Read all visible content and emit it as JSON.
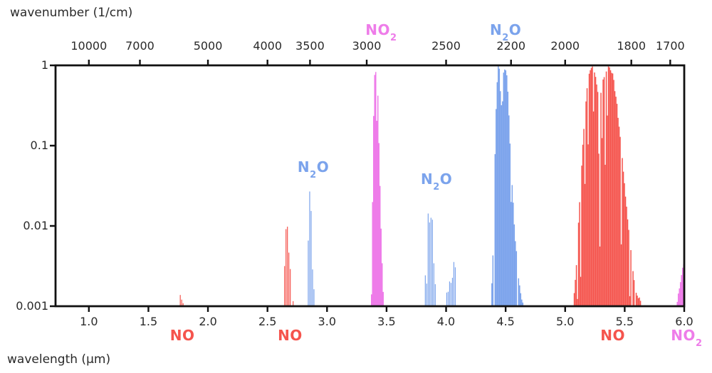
{
  "chart_data": {
    "type": "area",
    "title": "",
    "description": "Infrared absorption band spectrum of nitrogen oxides (NO, N2O, NO2) on a log intensity scale versus wavelength, with corresponding wavenumber axis on top",
    "top_axis": {
      "title": "wavenumber (1/cm)",
      "unit": "1/cm",
      "ticks": [
        "10000",
        "7000",
        "5000",
        "4000",
        "3500",
        "3000",
        "2500",
        "2200",
        "2000",
        "1800",
        "1700"
      ],
      "tick_values": [
        10000,
        7000,
        5000,
        4000,
        3500,
        3000,
        2500,
        2200,
        2000,
        1800,
        1700
      ],
      "relation": "wavenumber = 10000 / wavelength_um"
    },
    "bottom_axis": {
      "title": "wavelength (μm)",
      "unit": "μm",
      "ticks": [
        "1.0",
        "1.5",
        "2.0",
        "2.5",
        "3.0",
        "3.5",
        "4.0",
        "4.5",
        "5.0",
        "5.5",
        "6.0"
      ],
      "tick_values": [
        1.0,
        1.5,
        2.0,
        2.5,
        3.0,
        3.5,
        4.0,
        4.5,
        5.0,
        5.5,
        6.0
      ],
      "range_um": [
        0.72,
        6.0
      ]
    },
    "y_axis": {
      "title": "",
      "scale": "log",
      "range": [
        0.001,
        1
      ],
      "ticks": [
        "1",
        "0.1",
        "0.01",
        "0.001"
      ],
      "tick_values": [
        1,
        0.1,
        0.01,
        0.001
      ],
      "grid": false
    },
    "colors": {
      "NO": "#f5544d",
      "N2O": "#7ba3ec",
      "NO2": "#ee7ce9",
      "axis": "#111111",
      "text": "#2a2a2a"
    },
    "bands": [
      {
        "molecule": "NO",
        "color": "NO",
        "style": "spiky",
        "seed": 11,
        "jitter": 0.28,
        "gap_prob": 0.15,
        "gap_min": 0.2,
        "gap_var": 0.4,
        "envelope_um_value": [
          [
            1.752,
            0.001
          ],
          [
            1.76,
            0.0013
          ],
          [
            1.765,
            0.0023
          ],
          [
            1.771,
            0.0016
          ],
          [
            1.776,
            0.0021
          ],
          [
            1.782,
            0.0013
          ],
          [
            1.79,
            0.0011
          ],
          [
            1.806,
            0.001
          ]
        ]
      },
      {
        "molecule": "N2O",
        "color": "N2O",
        "style": "spiky",
        "seed": 22,
        "jitter": 0.3,
        "gap_prob": 0.1,
        "gap_min": 0.3,
        "gap_var": 0.3,
        "envelope_um_value": [
          [
            2.216,
            0.001
          ],
          [
            2.226,
            0.0012
          ],
          [
            2.236,
            0.0011
          ],
          [
            2.248,
            0.001
          ]
        ]
      },
      {
        "molecule": "N2O",
        "color": "N2O",
        "style": "spiky",
        "seed": 33,
        "jitter": 0.3,
        "gap_prob": 0.15,
        "gap_min": 0.3,
        "gap_var": 0.3,
        "envelope_um_value": [
          [
            2.543,
            0.001
          ],
          [
            2.552,
            0.0016
          ],
          [
            2.559,
            0.0012
          ],
          [
            2.566,
            0.0015
          ],
          [
            2.578,
            0.001
          ]
        ]
      },
      {
        "molecule": "NO",
        "color": "NO",
        "style": "spiky",
        "seed": 44,
        "jitter": 0.3,
        "gap_prob": 0.18,
        "gap_min": 0.1,
        "gap_var": 0.35,
        "envelope_um_value": [
          [
            2.628,
            0.001
          ],
          [
            2.637,
            0.003
          ],
          [
            2.645,
            0.0155
          ],
          [
            2.651,
            0.014
          ],
          [
            2.657,
            0.008
          ],
          [
            2.664,
            0.0128
          ],
          [
            2.672,
            0.011
          ],
          [
            2.681,
            0.005
          ],
          [
            2.694,
            0.0018
          ],
          [
            2.714,
            0.0011
          ],
          [
            2.738,
            0.001
          ]
        ]
      },
      {
        "molecule": "N2O",
        "color": "N2O",
        "style": "spiky",
        "seed": 55,
        "jitter": 0.3,
        "gap_prob": 0.18,
        "gap_min": 0.1,
        "gap_var": 0.35,
        "envelope_um_value": [
          [
            2.827,
            0.001
          ],
          [
            2.837,
            0.007
          ],
          [
            2.844,
            0.032
          ],
          [
            2.851,
            0.028
          ],
          [
            2.857,
            0.012
          ],
          [
            2.865,
            0.027
          ],
          [
            2.873,
            0.019
          ],
          [
            2.881,
            0.004
          ],
          [
            2.892,
            0.0012
          ],
          [
            2.901,
            0.001
          ]
        ]
      },
      {
        "molecule": "N2O",
        "color": "N2O",
        "style": "spiky",
        "seed": 66,
        "jitter": 0.35,
        "gap_prob": 0.15,
        "gap_min": 0.3,
        "gap_var": 0.3,
        "envelope_um_value": [
          [
            2.918,
            0.001
          ],
          [
            2.926,
            0.0017
          ],
          [
            2.934,
            0.0011
          ],
          [
            2.942,
            0.0016
          ],
          [
            2.952,
            0.0011
          ],
          [
            2.964,
            0.001
          ]
        ]
      },
      {
        "molecule": "NO2",
        "color": "NO2",
        "style": "solid",
        "seed": 77,
        "jitter": 0.05,
        "gap_prob": 0.12,
        "gap_min": 0.2,
        "gap_var": 0.35,
        "envelope_um_value": [
          [
            3.36,
            0.001
          ],
          [
            3.373,
            0.005
          ],
          [
            3.383,
            0.1
          ],
          [
            3.392,
            0.72
          ],
          [
            3.399,
            0.96
          ],
          [
            3.406,
            0.86
          ],
          [
            3.413,
            0.92
          ],
          [
            3.421,
            0.55
          ],
          [
            3.429,
            0.17
          ],
          [
            3.439,
            0.04
          ],
          [
            3.451,
            0.008
          ],
          [
            3.466,
            0.0016
          ],
          [
            3.479,
            0.001
          ]
        ]
      },
      {
        "molecule": "N2O",
        "color": "N2O",
        "style": "spiky",
        "seed": 88,
        "jitter": 0.1,
        "gap_prob": 0.0,
        "gap_min": 0.5,
        "gap_var": 0.2,
        "envelope_um_value": [
          [
            3.538,
            0.001
          ],
          [
            3.543,
            0.0018
          ],
          [
            3.549,
            0.001
          ]
        ]
      },
      {
        "molecule": "N2O",
        "color": "N2O",
        "style": "spiky",
        "seed": 99,
        "jitter": 0.3,
        "gap_prob": 0.18,
        "gap_min": 0.1,
        "gap_var": 0.35,
        "envelope_um_value": [
          [
            3.798,
            0.001
          ],
          [
            3.82,
            0.002
          ],
          [
            3.836,
            0.01
          ],
          [
            3.846,
            0.023
          ],
          [
            3.855,
            0.009
          ],
          [
            3.866,
            0.024
          ],
          [
            3.877,
            0.016
          ],
          [
            3.888,
            0.011
          ],
          [
            3.899,
            0.0032
          ],
          [
            3.915,
            0.0014
          ],
          [
            3.936,
            0.001
          ]
        ]
      },
      {
        "molecule": "N2O",
        "color": "N2O",
        "style": "spiky",
        "seed": 111,
        "jitter": 0.3,
        "gap_prob": 0.18,
        "gap_min": 0.15,
        "gap_var": 0.35,
        "envelope_um_value": [
          [
            3.99,
            0.001
          ],
          [
            4.008,
            0.002
          ],
          [
            4.02,
            0.0046
          ],
          [
            4.031,
            0.0017
          ],
          [
            4.044,
            0.0028
          ],
          [
            4.058,
            0.0055
          ],
          [
            4.07,
            0.0042
          ],
          [
            4.084,
            0.0016
          ],
          [
            4.104,
            0.001
          ]
        ]
      },
      {
        "molecule": "N2O",
        "color": "N2O",
        "style": "solid",
        "seed": 222,
        "jitter": 0.05,
        "gap_prob": 0.1,
        "gap_min": 0.05,
        "gap_var": 0.3,
        "envelope_um_value": [
          [
            4.371,
            0.001
          ],
          [
            4.39,
            0.005
          ],
          [
            4.406,
            0.07
          ],
          [
            4.419,
            0.45
          ],
          [
            4.431,
            1.0
          ],
          [
            4.444,
            0.92
          ],
          [
            4.457,
            0.34
          ],
          [
            4.467,
            0.3
          ],
          [
            4.479,
            0.85
          ],
          [
            4.491,
            1.0
          ],
          [
            4.504,
            0.88
          ],
          [
            4.517,
            0.45
          ],
          [
            4.531,
            0.13
          ],
          [
            4.551,
            0.032
          ],
          [
            4.577,
            0.007
          ],
          [
            4.611,
            0.0019
          ],
          [
            4.648,
            0.001
          ]
        ]
      },
      {
        "molecule": "NO",
        "color": "NO",
        "style": "solid",
        "seed": 333,
        "jitter": 0.06,
        "gap_prob": 0.28,
        "gap_min": 0.005,
        "gap_var": 0.3,
        "envelope_um_value": [
          [
            5.063,
            0.001
          ],
          [
            5.088,
            0.003
          ],
          [
            5.116,
            0.02
          ],
          [
            5.148,
            0.14
          ],
          [
            5.178,
            0.55
          ],
          [
            5.203,
            0.95
          ],
          [
            5.223,
            1.0
          ],
          [
            5.243,
            0.92
          ],
          [
            5.266,
            0.55
          ],
          [
            5.288,
            0.42
          ],
          [
            5.308,
            0.6
          ],
          [
            5.328,
            0.9
          ],
          [
            5.353,
            1.0
          ],
          [
            5.376,
            0.97
          ],
          [
            5.398,
            0.78
          ],
          [
            5.42,
            0.46
          ],
          [
            5.446,
            0.21
          ],
          [
            5.476,
            0.07
          ],
          [
            5.508,
            0.021
          ],
          [
            5.543,
            0.006
          ],
          [
            5.583,
            0.0018
          ],
          [
            5.638,
            0.0011
          ],
          [
            5.688,
            0.001
          ]
        ]
      },
      {
        "molecule": "NO2",
        "color": "NO2",
        "style": "solid",
        "seed": 444,
        "jitter": 0.04,
        "gap_prob": 0.0,
        "gap_min": 0.5,
        "gap_var": 0.2,
        "envelope_um_value": [
          [
            5.928,
            0.001
          ],
          [
            5.956,
            0.0018
          ],
          [
            5.979,
            0.003
          ],
          [
            6.002,
            0.0042
          ]
        ]
      }
    ],
    "annotations": [
      {
        "molecule": "NO2",
        "text_pre": "NO",
        "text_sub": "2",
        "text_post": "",
        "x_um": 3.455,
        "placement": "above_axis"
      },
      {
        "molecule": "N2O",
        "text_pre": "N",
        "text_sub": "2",
        "text_post": "O",
        "x_um": 4.5,
        "placement": "above_axis"
      },
      {
        "molecule": "N2O",
        "text_pre": "N",
        "text_sub": "2",
        "text_post": "O",
        "x_um": 2.885,
        "placement": "in_plot",
        "y_value": 0.07
      },
      {
        "molecule": "N2O",
        "text_pre": "N",
        "text_sub": "2",
        "text_post": "O",
        "x_um": 3.92,
        "placement": "in_plot",
        "y_value": 0.049
      },
      {
        "molecule": "NO",
        "text_pre": "NO",
        "text_sub": "",
        "text_post": "",
        "x_um": 1.785,
        "placement": "below_axis"
      },
      {
        "molecule": "NO",
        "text_pre": "NO",
        "text_sub": "",
        "text_post": "",
        "x_um": 2.69,
        "placement": "below_axis"
      },
      {
        "molecule": "NO",
        "text_pre": "NO",
        "text_sub": "",
        "text_post": "",
        "x_um": 5.4,
        "placement": "below_axis"
      },
      {
        "molecule": "NO2",
        "text_pre": "NO",
        "text_sub": "2",
        "text_post": "",
        "x_um": 6.02,
        "placement": "below_axis"
      }
    ]
  }
}
